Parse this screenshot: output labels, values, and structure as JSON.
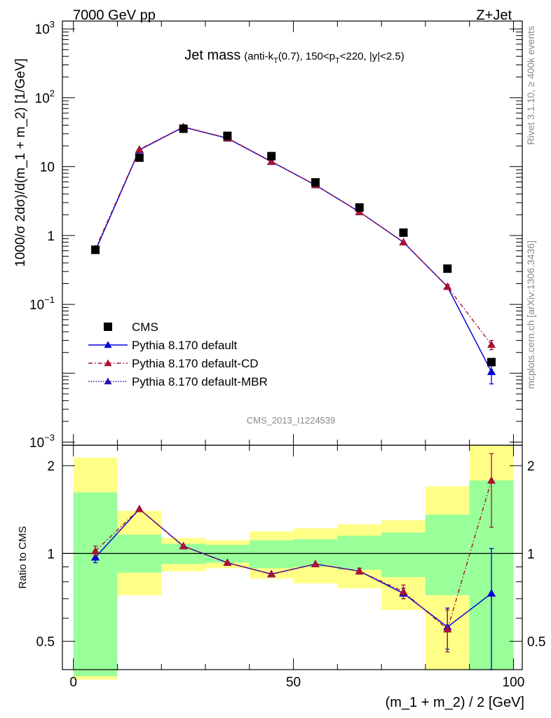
{
  "header": {
    "left": "7000 GeV pp",
    "right": "Z+Jet"
  },
  "side_labels": {
    "rivet": "Rivet 3.1.10, ≥ 400k events",
    "mcplots": "mcplots.cern.ch [arXiv:1306.3436]"
  },
  "analysis_id": "CMS_2013_I1224539",
  "chart_data": [
    {
      "type": "scatter",
      "title": "Jet mass",
      "subtitle_parts": [
        "(anti-k",
        "T",
        "(0.7), 150<p",
        "T",
        "<220, |y|<2.5)"
      ],
      "ylabel": "1000/σ 2dσ)/d(m_1 + m_2) [1/GeV]",
      "yscale": "log",
      "ylim": [
        0.0009,
        1300
      ],
      "xlim": [
        -2.5,
        102
      ],
      "grid": false,
      "legend_position": "bottom-left",
      "ytick_labels": [
        {
          "value": 1000,
          "base": "10",
          "exp": "3"
        },
        {
          "value": 100,
          "base": "10",
          "exp": "2"
        },
        {
          "value": 10,
          "base": "10",
          "exp": ""
        },
        {
          "value": 1,
          "base": "1",
          "exp": ""
        },
        {
          "value": 0.1,
          "base": "10",
          "exp": "−1"
        },
        {
          "value": 0.001,
          "base": "10",
          "exp": "−3"
        }
      ],
      "x": [
        5,
        15,
        25,
        35,
        45,
        55,
        65,
        75,
        85,
        95
      ],
      "series": [
        {
          "name": "CMS",
          "marker": "square",
          "color": "#000000",
          "style": "none",
          "values": [
            0.62,
            13.5,
            35.5,
            28.0,
            14.2,
            5.9,
            2.55,
            1.1,
            0.33,
            0.0145
          ]
        },
        {
          "name": "Pythia 8.170 default",
          "marker": "triangle",
          "color": "#0000dd",
          "style": "solid",
          "values": [
            0.6,
            17.5,
            37.5,
            25.8,
            11.8,
            5.4,
            2.2,
            0.8,
            0.18,
            0.0105
          ],
          "err_low": [
            0,
            0,
            0,
            0,
            0,
            0,
            0,
            0,
            0.015,
            0.0035
          ],
          "err_high": [
            0,
            0,
            0,
            0,
            0,
            0,
            0,
            0,
            0.015,
            0.003
          ]
        },
        {
          "name": "Pythia 8.170 default-CD",
          "marker": "triangle",
          "color": "#aa1133",
          "style": "dashdot",
          "values": [
            0.64,
            17.8,
            37.8,
            26.0,
            11.9,
            5.4,
            2.2,
            0.8,
            0.18,
            0.026
          ],
          "err_low": [
            0,
            0,
            0,
            0,
            0,
            0,
            0,
            0,
            0.015,
            0.004
          ],
          "err_high": [
            0,
            0,
            0,
            0,
            0,
            0,
            0,
            0,
            0.015,
            0.004
          ]
        },
        {
          "name": "Pythia 8.170 default-MBR",
          "marker": "triangle",
          "color": "#3311aa",
          "style": "dotted",
          "values": [
            0.6,
            17.5,
            37.5,
            25.8,
            11.8,
            5.4,
            2.2,
            0.8,
            0.18,
            0.0105
          ]
        }
      ]
    },
    {
      "type": "scatter",
      "ylabel": "Ratio to CMS",
      "xlabel": "(m_1 + m_2) / 2 [GeV]",
      "yscale": "log",
      "ylim": [
        0.4,
        2.35
      ],
      "xlim": [
        -2.5,
        102
      ],
      "ytick_labels": [
        "2",
        "1",
        "0.5"
      ],
      "xtick_labels": [
        "0",
        "50",
        "100"
      ],
      "band_colors": {
        "inner": "#99ff99",
        "outer": "#ffff88"
      },
      "bins": [
        [
          0,
          10
        ],
        [
          10,
          20
        ],
        [
          20,
          30
        ],
        [
          30,
          40
        ],
        [
          40,
          50
        ],
        [
          50,
          60
        ],
        [
          60,
          70
        ],
        [
          70,
          80
        ],
        [
          80,
          90
        ],
        [
          90,
          100
        ]
      ],
      "inner_band": [
        [
          0.38,
          1.62
        ],
        [
          0.86,
          1.16
        ],
        [
          0.92,
          1.08
        ],
        [
          0.93,
          1.07
        ],
        [
          0.89,
          1.11
        ],
        [
          0.9,
          1.12
        ],
        [
          0.88,
          1.15
        ],
        [
          0.83,
          1.18
        ],
        [
          0.72,
          1.36
        ],
        [
          0.4,
          1.78
        ]
      ],
      "outer_band": [
        [
          0.37,
          2.13
        ],
        [
          0.72,
          1.4
        ],
        [
          0.87,
          1.13
        ],
        [
          0.89,
          1.11
        ],
        [
          0.82,
          1.19
        ],
        [
          0.79,
          1.22
        ],
        [
          0.76,
          1.26
        ],
        [
          0.64,
          1.3
        ],
        [
          0.4,
          1.7
        ],
        [
          0.4,
          2.35
        ]
      ],
      "x": [
        5,
        15,
        25,
        35,
        45,
        55,
        65,
        75,
        85,
        95
      ],
      "series": [
        {
          "name": "Pythia 8.170 default",
          "color": "#0000dd",
          "style": "solid",
          "values": [
            0.97,
            1.42,
            1.06,
            0.93,
            0.85,
            0.92,
            0.87,
            0.73,
            0.56,
            0.73
          ],
          "err_low": [
            0.04,
            0,
            0,
            0,
            0,
            0,
            0.02,
            0.03,
            0.09,
            0.33
          ],
          "err_high": [
            0.04,
            0,
            0,
            0,
            0,
            0,
            0.02,
            0.03,
            0.09,
            0.31
          ]
        },
        {
          "name": "Pythia 8.170 default-CD",
          "color": "#aa1133",
          "style": "dashdot",
          "values": [
            1.02,
            1.42,
            1.06,
            0.93,
            0.85,
            0.92,
            0.87,
            0.74,
            0.55,
            1.78
          ],
          "err_low": [
            0.04,
            0,
            0,
            0,
            0,
            0,
            0.02,
            0.04,
            0.09,
            0.55
          ],
          "err_high": [
            0.04,
            0,
            0,
            0,
            0,
            0,
            0.02,
            0.04,
            0.09,
            0.42
          ]
        },
        {
          "name": "Pythia 8.170 default-MBR",
          "color": "#3311aa",
          "style": "dotted",
          "values": [
            0.97,
            1.42,
            1.06,
            0.93,
            0.85,
            0.92,
            0.87,
            0.73,
            0.56,
            0.73
          ]
        }
      ]
    }
  ]
}
